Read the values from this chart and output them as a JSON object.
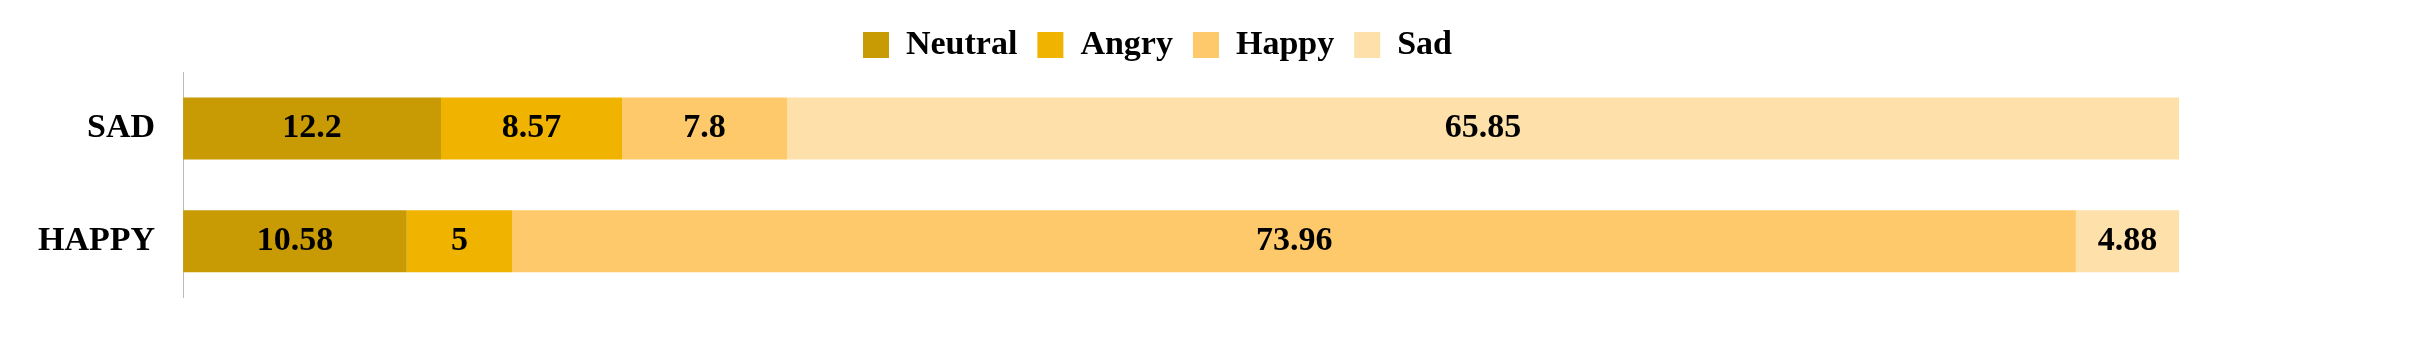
{
  "chart_data": {
    "type": "bar",
    "orientation": "horizontal",
    "stacked": true,
    "categories": [
      "SAD",
      "HAPPY"
    ],
    "series": [
      {
        "name": "Neutral",
        "color": "#c89a04",
        "values": [
          12.2,
          10.58
        ]
      },
      {
        "name": "Angry",
        "color": "#f0b400",
        "values": [
          8.57,
          5
        ]
      },
      {
        "name": "Happy",
        "color": "#fdc96a",
        "values": [
          7.8,
          73.96
        ]
      },
      {
        "name": "Sad",
        "color": "#fde0aa",
        "values": [
          65.85,
          4.88
        ]
      }
    ],
    "data_labels": true,
    "legend": "top",
    "grid": false,
    "tick_labels": "y"
  }
}
